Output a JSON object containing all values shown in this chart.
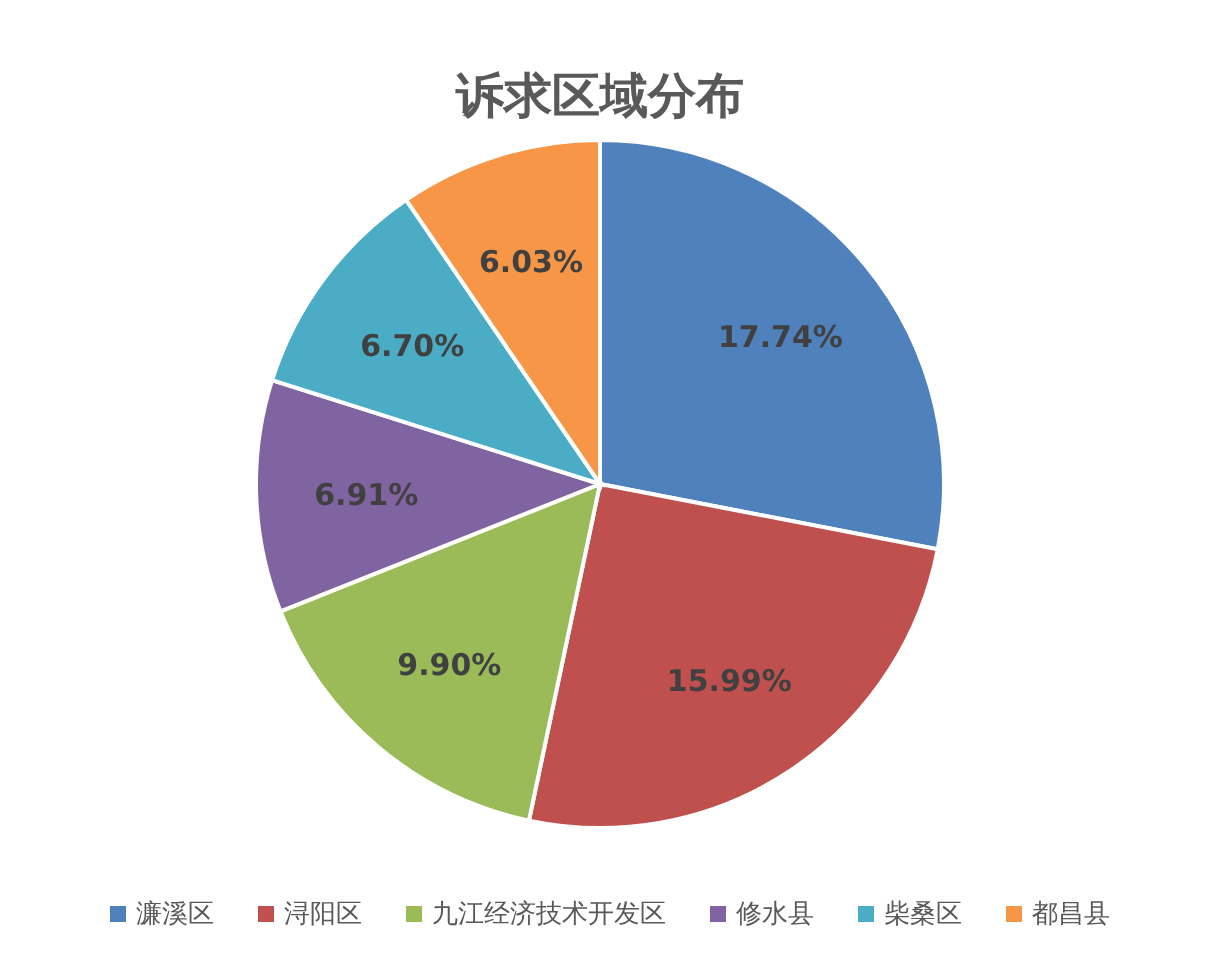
{
  "chart_data": {
    "type": "pie",
    "title": "诉求区域分布",
    "categories": [
      "濂溪区",
      "浔阳区",
      "九江经济技术开发区",
      "修水县",
      "柴桑区",
      "都昌县"
    ],
    "values": [
      17.74,
      15.99,
      9.9,
      6.91,
      6.7,
      6.03
    ],
    "value_labels": [
      "17.74%",
      "15.99%",
      "9.90%",
      "6.91%",
      "6.70%",
      "6.03%"
    ],
    "colors": [
      "#4f81bd",
      "#c0504d",
      "#9bbb59",
      "#8064a2",
      "#4bacc6",
      "#f79646"
    ],
    "legend": "bottom"
  }
}
